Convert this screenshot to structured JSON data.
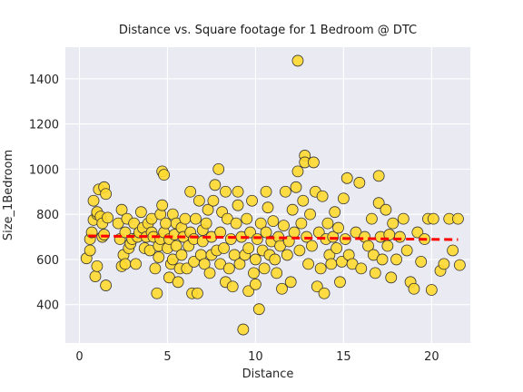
{
  "chart_data": {
    "type": "scatter",
    "title": "Distance vs. Square footage for 1 Bedroom @ DTC",
    "xlabel": "Distance",
    "ylabel": "Size_1Bedroom",
    "xlim": [
      -0.8,
      22.2
    ],
    "ylim": [
      230,
      1540
    ],
    "xticks": [
      0,
      5,
      10,
      15,
      20
    ],
    "yticks": [
      400,
      600,
      800,
      1000,
      1200,
      1400
    ],
    "grid": true,
    "background": "#eaeaf2",
    "marker_color": "#ffd92f",
    "marker_edge": "#333333",
    "trend_color": "#ff0000",
    "trend": {
      "x": [
        0.5,
        21.5
      ],
      "y": [
        704,
        688
      ]
    },
    "points": [
      [
        0.4,
        605
      ],
      [
        0.6,
        640
      ],
      [
        0.6,
        690
      ],
      [
        0.7,
        720
      ],
      [
        0.8,
        775
      ],
      [
        0.8,
        860
      ],
      [
        0.9,
        525
      ],
      [
        1.0,
        570
      ],
      [
        1.0,
        800
      ],
      [
        1.0,
        810
      ],
      [
        1.1,
        910
      ],
      [
        1.2,
        790
      ],
      [
        1.3,
        700
      ],
      [
        1.3,
        760
      ],
      [
        1.4,
        920
      ],
      [
        1.4,
        710
      ],
      [
        1.5,
        890
      ],
      [
        1.5,
        485
      ],
      [
        1.6,
        785
      ],
      [
        2.2,
        760
      ],
      [
        2.3,
        690
      ],
      [
        2.4,
        820
      ],
      [
        2.4,
        570
      ],
      [
        2.5,
        620
      ],
      [
        2.6,
        580
      ],
      [
        2.6,
        720
      ],
      [
        2.7,
        780
      ],
      [
        2.8,
        650
      ],
      [
        2.9,
        670
      ],
      [
        3.0,
        690
      ],
      [
        3.1,
        760
      ],
      [
        3.2,
        580
      ],
      [
        3.3,
        700
      ],
      [
        3.4,
        720
      ],
      [
        3.5,
        810
      ],
      [
        3.6,
        740
      ],
      [
        3.7,
        650
      ],
      [
        3.8,
        700
      ],
      [
        3.9,
        760
      ],
      [
        4.0,
        640
      ],
      [
        4.1,
        720
      ],
      [
        4.1,
        780
      ],
      [
        4.2,
        700
      ],
      [
        4.3,
        560
      ],
      [
        4.4,
        450
      ],
      [
        4.5,
        610
      ],
      [
        4.5,
        660
      ],
      [
        4.6,
        690
      ],
      [
        4.6,
        800
      ],
      [
        4.7,
        840
      ],
      [
        4.7,
        990
      ],
      [
        4.8,
        975
      ],
      [
        4.8,
        720
      ],
      [
        4.9,
        760
      ],
      [
        5.0,
        650
      ],
      [
        5.1,
        690
      ],
      [
        5.1,
        520
      ],
      [
        5.2,
        580
      ],
      [
        5.3,
        600
      ],
      [
        5.3,
        800
      ],
      [
        5.4,
        710
      ],
      [
        5.5,
        760
      ],
      [
        5.5,
        660
      ],
      [
        5.6,
        500
      ],
      [
        5.7,
        560
      ],
      [
        5.8,
        620
      ],
      [
        5.8,
        740
      ],
      [
        5.9,
        700
      ],
      [
        6.0,
        780
      ],
      [
        6.1,
        560
      ],
      [
        6.2,
        660
      ],
      [
        6.3,
        720
      ],
      [
        6.3,
        900
      ],
      [
        6.4,
        450
      ],
      [
        6.5,
        590
      ],
      [
        6.5,
        690
      ],
      [
        6.6,
        780
      ],
      [
        6.7,
        450
      ],
      [
        6.8,
        860
      ],
      [
        6.9,
        620
      ],
      [
        7.0,
        680
      ],
      [
        7.0,
        730
      ],
      [
        7.1,
        580
      ],
      [
        7.2,
        760
      ],
      [
        7.3,
        820
      ],
      [
        7.4,
        540
      ],
      [
        7.5,
        620
      ],
      [
        7.5,
        700
      ],
      [
        7.6,
        860
      ],
      [
        7.7,
        930
      ],
      [
        7.8,
        640
      ],
      [
        7.9,
        1000
      ],
      [
        8.0,
        580
      ],
      [
        8.0,
        720
      ],
      [
        8.1,
        810
      ],
      [
        8.2,
        650
      ],
      [
        8.3,
        500
      ],
      [
        8.3,
        900
      ],
      [
        8.4,
        780
      ],
      [
        8.5,
        560
      ],
      [
        8.6,
        690
      ],
      [
        8.7,
        480
      ],
      [
        8.8,
        620
      ],
      [
        8.9,
        760
      ],
      [
        9.0,
        900
      ],
      [
        9.0,
        840
      ],
      [
        9.1,
        580
      ],
      [
        9.2,
        700
      ],
      [
        9.3,
        290
      ],
      [
        9.4,
        620
      ],
      [
        9.5,
        780
      ],
      [
        9.6,
        460
      ],
      [
        9.6,
        650
      ],
      [
        9.7,
        720
      ],
      [
        9.8,
        860
      ],
      [
        9.9,
        540
      ],
      [
        10.0,
        490
      ],
      [
        10.0,
        600
      ],
      [
        10.1,
        690
      ],
      [
        10.2,
        380
      ],
      [
        10.3,
        760
      ],
      [
        10.4,
        640
      ],
      [
        10.5,
        560
      ],
      [
        10.6,
        900
      ],
      [
        10.6,
        720
      ],
      [
        10.7,
        830
      ],
      [
        10.8,
        620
      ],
      [
        10.9,
        680
      ],
      [
        11.0,
        770
      ],
      [
        11.1,
        600
      ],
      [
        11.2,
        540
      ],
      [
        11.3,
        700
      ],
      [
        11.4,
        660
      ],
      [
        11.5,
        470
      ],
      [
        11.6,
        750
      ],
      [
        11.7,
        900
      ],
      [
        11.8,
        620
      ],
      [
        11.9,
        680
      ],
      [
        12.0,
        500
      ],
      [
        12.1,
        820
      ],
      [
        12.2,
        720
      ],
      [
        12.3,
        920
      ],
      [
        12.4,
        1480
      ],
      [
        12.4,
        990
      ],
      [
        12.5,
        640
      ],
      [
        12.6,
        760
      ],
      [
        12.7,
        860
      ],
      [
        12.8,
        1060
      ],
      [
        12.8,
        1030
      ],
      [
        12.9,
        700
      ],
      [
        13.0,
        580
      ],
      [
        13.1,
        800
      ],
      [
        13.2,
        660
      ],
      [
        13.3,
        1030
      ],
      [
        13.4,
        900
      ],
      [
        13.5,
        480
      ],
      [
        13.6,
        720
      ],
      [
        13.7,
        560
      ],
      [
        13.8,
        880
      ],
      [
        13.9,
        450
      ],
      [
        14.0,
        690
      ],
      [
        14.1,
        760
      ],
      [
        14.2,
        620
      ],
      [
        14.3,
        580
      ],
      [
        14.4,
        700
      ],
      [
        14.5,
        810
      ],
      [
        14.6,
        650
      ],
      [
        14.7,
        740
      ],
      [
        14.8,
        500
      ],
      [
        14.9,
        590
      ],
      [
        15.0,
        870
      ],
      [
        15.1,
        690
      ],
      [
        15.2,
        960
      ],
      [
        15.3,
        620
      ],
      [
        15.5,
        580
      ],
      [
        15.7,
        720
      ],
      [
        15.9,
        940
      ],
      [
        16.0,
        560
      ],
      [
        16.2,
        700
      ],
      [
        16.4,
        660
      ],
      [
        16.6,
        780
      ],
      [
        16.7,
        620
      ],
      [
        16.8,
        540
      ],
      [
        17.0,
        850
      ],
      [
        17.0,
        970
      ],
      [
        17.1,
        700
      ],
      [
        17.2,
        600
      ],
      [
        17.4,
        820
      ],
      [
        17.5,
        660
      ],
      [
        17.6,
        710
      ],
      [
        17.7,
        520
      ],
      [
        17.8,
        760
      ],
      [
        18.0,
        600
      ],
      [
        18.2,
        700
      ],
      [
        18.4,
        780
      ],
      [
        18.6,
        640
      ],
      [
        18.8,
        500
      ],
      [
        19.0,
        470
      ],
      [
        19.2,
        720
      ],
      [
        19.4,
        590
      ],
      [
        19.6,
        690
      ],
      [
        19.8,
        780
      ],
      [
        20.0,
        465
      ],
      [
        20.1,
        780
      ],
      [
        20.5,
        550
      ],
      [
        20.7,
        580
      ],
      [
        21.0,
        780
      ],
      [
        21.2,
        640
      ],
      [
        21.5,
        780
      ],
      [
        21.6,
        575
      ]
    ]
  }
}
